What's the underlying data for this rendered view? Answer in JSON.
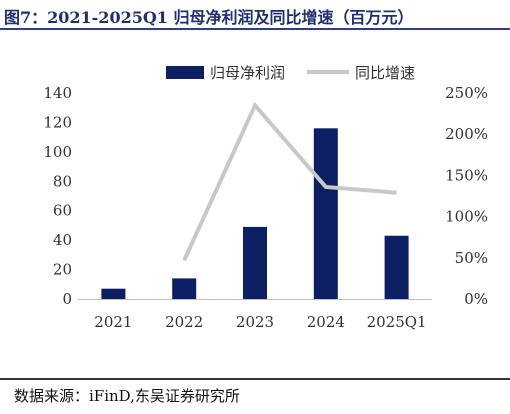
{
  "chart_data": {
    "type": "bar+line",
    "title": "图7：2021-2025Q1 归母净利润及同比增速（百万元）",
    "categories": [
      "2021",
      "2022",
      "2023",
      "2024",
      "2025Q1"
    ],
    "series": [
      {
        "name": "归母净利润",
        "type": "bar",
        "axis": "left",
        "values": [
          7,
          14,
          49,
          116,
          43
        ],
        "color": "#0d1f63"
      },
      {
        "name": "同比增速",
        "type": "line",
        "axis": "right",
        "values": [
          null,
          0.47,
          2.35,
          1.36,
          1.29
        ],
        "color": "#c8c8c8"
      }
    ],
    "y_left": {
      "min": 0,
      "max": 140,
      "ticks": [
        "0",
        "20",
        "40",
        "60",
        "80",
        "100",
        "120",
        "140"
      ]
    },
    "y_right": {
      "min": 0,
      "max": 2.5,
      "ticks": [
        "0%",
        "50%",
        "100%",
        "150%",
        "200%",
        "250%"
      ]
    },
    "grid": false,
    "legend_position": "top"
  },
  "source": "数据来源：iFinD,东吴证券研究所"
}
